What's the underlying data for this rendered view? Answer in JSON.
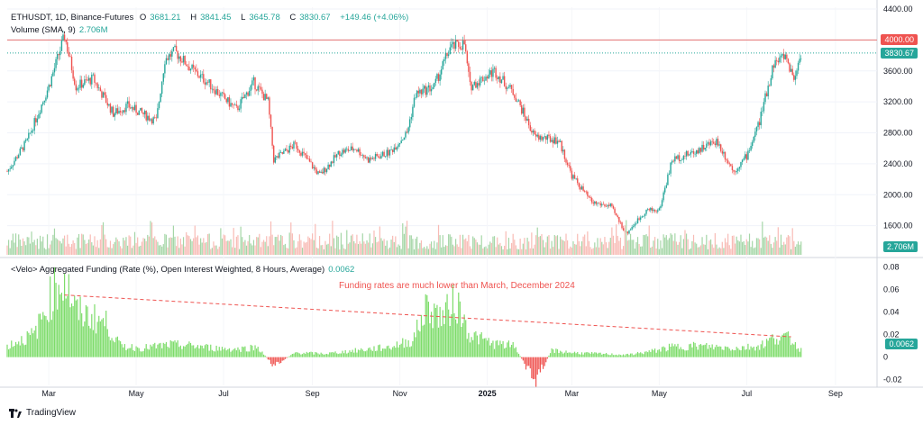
{
  "header": {
    "symbol": "ETHUSDT, 1D, Binance-Futures",
    "open_label": "O",
    "open": "3681.21",
    "high_label": "H",
    "high": "3841.45",
    "low_label": "L",
    "low": "3645.78",
    "close_label": "C",
    "close": "3830.67",
    "change": "+149.46 (+4.06%)",
    "volume_label": "Volume (SMA, 9)",
    "volume_value": "2.706M"
  },
  "funding": {
    "title": "<Velo> Aggregated Funding (Rate (%), Open Interest Weighted, 8 Hours, Average)",
    "value": "0.0062",
    "annotation": "Funding rates are much lower than March, December 2024"
  },
  "badges": {
    "resistance": "4000.00",
    "last_price": "3830.67",
    "volume": "2.706M",
    "funding": "0.0062"
  },
  "footer": {
    "brand": "TradingView"
  },
  "colors": {
    "up": "#26a69a",
    "down": "#ef5350",
    "funding": "#7ddc6a",
    "resistance": "#e57373"
  },
  "chart_data": [
    {
      "type": "candlestick",
      "title": "ETHUSDT, 1D, Binance-Futures",
      "y_ticks": [
        "4400.00",
        "4000.00",
        "3600.00",
        "3200.00",
        "2800.00",
        "2400.00",
        "2000.00",
        "1600.00"
      ],
      "ylim": [
        1200,
        4400
      ],
      "x_ticks": [
        "Mar",
        "May",
        "Jul",
        "Sep",
        "Nov",
        "2025",
        "Mar",
        "May",
        "Jul",
        "Sep"
      ],
      "resistance_line": 4000,
      "last_price": 3830.67,
      "series": [
        {
          "name": "ETHUSDT",
          "points": [
            [
              "2024-02-01",
              2300
            ],
            [
              "2024-02-15",
              2700
            ],
            [
              "2024-03-01",
              3400
            ],
            [
              "2024-03-12",
              4050
            ],
            [
              "2024-03-20",
              3400
            ],
            [
              "2024-04-01",
              3500
            ],
            [
              "2024-04-15",
              3050
            ],
            [
              "2024-04-25",
              3150
            ],
            [
              "2024-05-05",
              3050
            ],
            [
              "2024-05-15",
              2950
            ],
            [
              "2024-05-21",
              3750
            ],
            [
              "2024-05-28",
              3850
            ],
            [
              "2024-06-10",
              3600
            ],
            [
              "2024-06-20",
              3450
            ],
            [
              "2024-07-01",
              3250
            ],
            [
              "2024-07-10",
              3100
            ],
            [
              "2024-07-22",
              3450
            ],
            [
              "2024-08-01",
              3200
            ],
            [
              "2024-08-05",
              2450
            ],
            [
              "2024-08-20",
              2650
            ],
            [
              "2024-09-06",
              2250
            ],
            [
              "2024-09-20",
              2550
            ],
            [
              "2024-10-01",
              2600
            ],
            [
              "2024-10-10",
              2450
            ],
            [
              "2024-10-25",
              2550
            ],
            [
              "2024-11-06",
              2800
            ],
            [
              "2024-11-12",
              3300
            ],
            [
              "2024-11-25",
              3400
            ],
            [
              "2024-12-06",
              3900
            ],
            [
              "2024-12-16",
              3950
            ],
            [
              "2024-12-20",
              3400
            ],
            [
              "2025-01-06",
              3600
            ],
            [
              "2025-01-20",
              3300
            ],
            [
              "2025-02-03",
              2750
            ],
            [
              "2025-02-20",
              2700
            ],
            [
              "2025-03-01",
              2250
            ],
            [
              "2025-03-15",
              1900
            ],
            [
              "2025-03-28",
              1850
            ],
            [
              "2025-04-08",
              1500
            ],
            [
              "2025-04-22",
              1800
            ],
            [
              "2025-05-01",
              1800
            ],
            [
              "2025-05-10",
              2450
            ],
            [
              "2025-05-25",
              2550
            ],
            [
              "2025-06-10",
              2700
            ],
            [
              "2025-06-22",
              2300
            ],
            [
              "2025-07-01",
              2500
            ],
            [
              "2025-07-10",
              2950
            ],
            [
              "2025-07-20",
              3700
            ],
            [
              "2025-07-28",
              3800
            ],
            [
              "2025-08-03",
              3500
            ],
            [
              "2025-08-08",
              3830
            ]
          ]
        }
      ]
    },
    {
      "type": "bar",
      "title": "Volume (SMA, 9)",
      "last_value": "2.706M",
      "note": "Volume bars shown as relative heights; spikes around 2024-03-12, 2024-08-05, 2025-02-03, 2025-04-08, 2025-07"
    },
    {
      "type": "bar",
      "title": "<Velo> Aggregated Funding (Rate (%), Open Interest Weighted, 8 Hours, Average)",
      "y_ticks": [
        "0.08",
        "0.06",
        "0.04",
        "0.02",
        "0",
        "-0.02"
      ],
      "ylim": [
        -0.025,
        0.085
      ],
      "last_value": 0.0062,
      "series": [
        {
          "name": "Funding",
          "points": [
            [
              "2024-02-01",
              0.01
            ],
            [
              "2024-02-20",
              0.02
            ],
            [
              "2024-03-05",
              0.06
            ],
            [
              "2024-03-12",
              0.07
            ],
            [
              "2024-03-20",
              0.04
            ],
            [
              "2024-04-01",
              0.035
            ],
            [
              "2024-04-10",
              0.03
            ],
            [
              "2024-04-20",
              0.01
            ],
            [
              "2024-05-05",
              0.008
            ],
            [
              "2024-05-25",
              0.011
            ],
            [
              "2024-06-10",
              0.01
            ],
            [
              "2024-06-25",
              0.008
            ],
            [
              "2024-07-10",
              0.007
            ],
            [
              "2024-07-25",
              0.009
            ],
            [
              "2024-08-05",
              -0.008
            ],
            [
              "2024-08-20",
              0.004
            ],
            [
              "2024-09-10",
              0.003
            ],
            [
              "2024-09-25",
              0.005
            ],
            [
              "2024-10-10",
              0.007
            ],
            [
              "2024-10-25",
              0.009
            ],
            [
              "2024-11-10",
              0.015
            ],
            [
              "2024-11-20",
              0.045
            ],
            [
              "2024-12-01",
              0.035
            ],
            [
              "2024-12-10",
              0.05
            ],
            [
              "2024-12-20",
              0.02
            ],
            [
              "2025-01-05",
              0.012
            ],
            [
              "2025-01-20",
              0.01
            ],
            [
              "2025-02-03",
              -0.022
            ],
            [
              "2025-02-15",
              0.006
            ],
            [
              "2025-03-01",
              0.004
            ],
            [
              "2025-03-20",
              0.003
            ],
            [
              "2025-04-08",
              0.002
            ],
            [
              "2025-04-25",
              0.005
            ],
            [
              "2025-05-10",
              0.009
            ],
            [
              "2025-05-25",
              0.01
            ],
            [
              "2025-06-10",
              0.009
            ],
            [
              "2025-06-25",
              0.008
            ],
            [
              "2025-07-10",
              0.01
            ],
            [
              "2025-07-22",
              0.018
            ],
            [
              "2025-08-01",
              0.016
            ],
            [
              "2025-08-08",
              0.0062
            ]
          ]
        }
      ],
      "trendline": [
        [
          "2024-03-12",
          0.055
        ],
        [
          "2025-08-01",
          0.018
        ]
      ]
    }
  ]
}
